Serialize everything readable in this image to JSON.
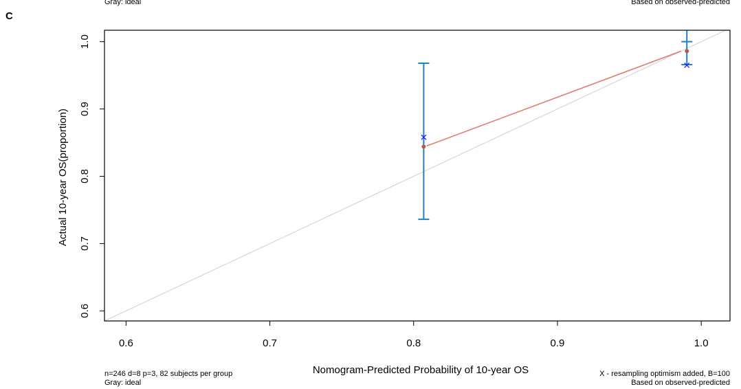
{
  "panel_label": "C",
  "top_notes": {
    "left": "Gray: ideal",
    "right": "Based on observed-predicted"
  },
  "bottom_notes": {
    "left_line1": "n=246 d=8 p=3, 82 subjects per group",
    "left_line2": "Gray: ideal",
    "right_line1": "X - resampling optimism added, B=100",
    "right_line2": "Based on observed-predicted"
  },
  "colors": {
    "ideal": "#d9d9d9",
    "apparent": "#e07b6a",
    "errorbar": "#1f7fc7",
    "point": "#b05a52",
    "corrected": "#1a1aff"
  },
  "chart_data": {
    "type": "scatter",
    "xlabel": "Nomogram-Predicted Probability of 10-year OS",
    "ylabel": "Actual 10-year OS(proportion)",
    "xlim": [
      0.585,
      1.02
    ],
    "ylim": [
      0.585,
      1.017
    ],
    "x_ticks": [
      0.6,
      0.7,
      0.8,
      0.9,
      1.0
    ],
    "x_tick_labels": [
      "0.6",
      "0.7",
      "0.8",
      "0.9",
      "1.0"
    ],
    "y_ticks": [
      0.6,
      0.7,
      0.8,
      0.9,
      1.0
    ],
    "y_tick_labels": [
      "0.6",
      "0.7",
      "0.8",
      "0.9",
      "1.0"
    ],
    "ideal_line": [
      [
        0.585,
        0.585
      ],
      [
        1.02,
        1.02
      ]
    ],
    "apparent_line": [
      [
        0.809,
        0.845
      ],
      [
        0.986,
        0.986
      ]
    ],
    "points": [
      {
        "x": 0.807,
        "y": 0.844,
        "lower": 0.736,
        "upper": 0.968,
        "corrected": 0.858
      },
      {
        "x": 0.99,
        "y": 0.986,
        "lower": 0.966,
        "upper": 1.0,
        "corrected": 0.965
      }
    ]
  }
}
